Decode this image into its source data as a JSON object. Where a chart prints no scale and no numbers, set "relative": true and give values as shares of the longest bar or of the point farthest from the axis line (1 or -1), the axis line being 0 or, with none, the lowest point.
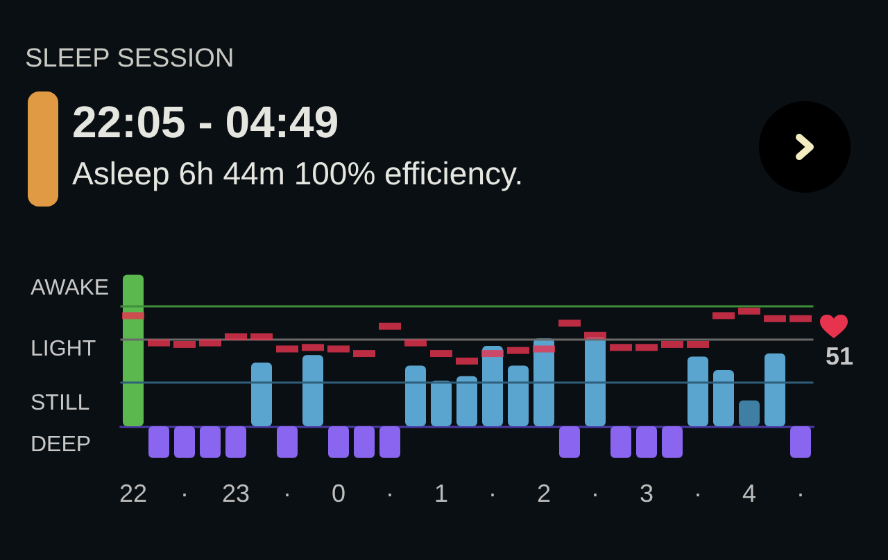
{
  "chart_data": {
    "type": "bar",
    "title": "SLEEP SESSION",
    "subtitle": "22:05 - 04:49",
    "annotations": [
      "Asleep 6h 44m 100% efficiency.",
      "AWAKE",
      "LIGHT",
      "STILL",
      "DEEP",
      "51"
    ],
    "relative": true,
    "grid": false,
    "tick_labels": "x",
    "categories": [
      "22",
      null,
      "·",
      null,
      "23",
      null,
      "·",
      null,
      "0",
      null,
      "·",
      null,
      "1",
      null,
      "·",
      null,
      "2",
      null,
      "·",
      null,
      "3",
      null,
      "·",
      null,
      "4",
      null,
      "·"
    ],
    "series": [
      {
        "values": [
          1.0,
          -0.21,
          -0.21,
          -0.21,
          -0.21,
          0.42,
          -0.21,
          0.47,
          -0.21,
          -0.21,
          -0.21,
          0.4,
          0.3,
          0.33,
          0.53,
          0.4,
          0.58,
          -0.21,
          0.59,
          -0.21,
          -0.21,
          -0.21,
          0.46,
          0.37,
          0.17,
          0.48,
          -0.21
        ],
        "colors": [
          "#5bb84f",
          "#8a66f0",
          "#8a66f0",
          "#8a66f0",
          "#8a66f0",
          "#5aa5cf",
          "#8a66f0",
          "#5aa5cf",
          "#8a66f0",
          "#8a66f0",
          "#8a66f0",
          "#5aa5cf",
          "#5aa5cf",
          "#5aa5cf",
          "#5aa5cf",
          "#5aa5cf",
          "#5aa5cf",
          "#8a66f0",
          "#5aa5cf",
          "#8a66f0",
          "#8a66f0",
          "#8a66f0",
          "#5aa5cf",
          "#5aa5cf",
          "#3e7fa3",
          "#5aa5cf",
          "#8a66f0"
        ]
      },
      {
        "type": "scatter",
        "marker": "square",
        "color": "#e8334f",
        "values": [
          0.73,
          0.55,
          0.54,
          0.55,
          0.59,
          0.59,
          0.51,
          0.52,
          0.51,
          0.48,
          0.66,
          0.55,
          0.48,
          0.43,
          0.48,
          0.5,
          0.51,
          0.68,
          0.6,
          0.52,
          0.52,
          0.54,
          0.54,
          0.73,
          0.76,
          0.71,
          0.71
        ]
      }
    ],
    "ref_lines": [
      {
        "axis": "y",
        "value": 0.79,
        "color": "#3f8f3a"
      },
      {
        "axis": "y",
        "value": 0.57,
        "color": "#6a6a6a"
      },
      {
        "axis": "y",
        "value": 0.29,
        "color": "#2f5f7a"
      }
    ]
  }
}
